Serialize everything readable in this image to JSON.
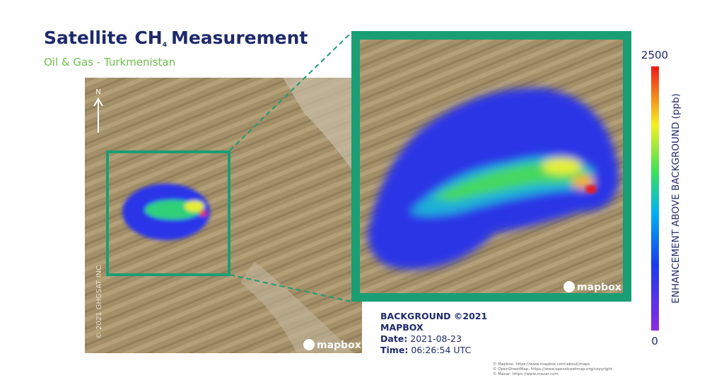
{
  "header": {
    "title_parts": [
      "Satellite",
      "CH",
      "4",
      "Measurement"
    ],
    "subtitle": "Oil & Gas - Turkmenistan"
  },
  "map": {
    "north": "N",
    "copyright": "© 2021 GHGSAT INC",
    "logo": "mapbox",
    "inset_logo": "mapbox"
  },
  "info": {
    "background": "BACKGROUND ©2021",
    "background_source": "MAPBOX",
    "date_label": "Date:",
    "date": "2021-08-23",
    "time_label": "Time:",
    "time": "06:26:54 UTC"
  },
  "attributions": [
    "© Mapbox: https://www.mapbox.com/about/maps",
    "© OpenStreetMap: https://www.openstreetmap.org/copyright",
    "© Maxar: https://www.maxar.com"
  ],
  "colorbar": {
    "label": "ENHANCEMENT ABOVE BACKGROUND (ppb)",
    "max": "2500",
    "min": "0"
  }
}
